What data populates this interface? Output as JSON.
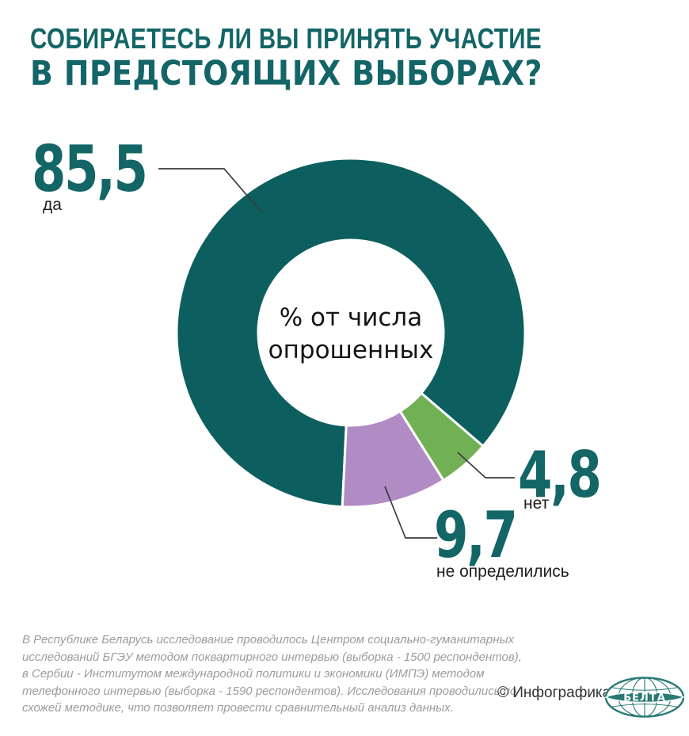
{
  "accent": "#136566",
  "header": {
    "title_line1": "СОБИРАЕТЕСЬ ЛИ ВЫ ПРИНЯТЬ УЧАСТИЕ",
    "title_line2": "В ПРЕДСТОЯЩИХ ВЫБОРАХ?"
  },
  "chart_data": {
    "type": "pie",
    "variant": "donut",
    "title": "Собираетесь ли вы принять участие в предстоящих выборах?",
    "unit": "% от числа опрошенных",
    "center_label_line1": "% от числа",
    "center_label_line2": "опрошенных",
    "start_angle_deg": 92.8,
    "direction": "clockwise",
    "legend_position": "callouts",
    "slices": [
      {
        "label": "да",
        "value": 85.5,
        "display_value": "85,5",
        "color": "#0d5f5f"
      },
      {
        "label": "нет",
        "value": 4.8,
        "display_value": "4,8",
        "color": "#72b055"
      },
      {
        "label": "не определились",
        "value": 9.7,
        "display_value": "9,7",
        "color": "#b18bc4"
      }
    ]
  },
  "footer": {
    "lines": [
      "В Республике Беларусь исследование проводилось Центром социально-гуманитарных",
      "исследований БГЭУ методом поквартирного интервью (выборка - 1500 респондентов),",
      "в Сербии - Институтом международной политики и экономики (ИМПЭ) методом",
      "телефонного интервью (выборка - 1590 респондентов). Исследования проводились по",
      "схожей методике, что позволяет провести сравнительный анализ данных."
    ]
  },
  "credit": {
    "copyright": "© Инфографика",
    "logo_text": "БЕЛТА"
  }
}
